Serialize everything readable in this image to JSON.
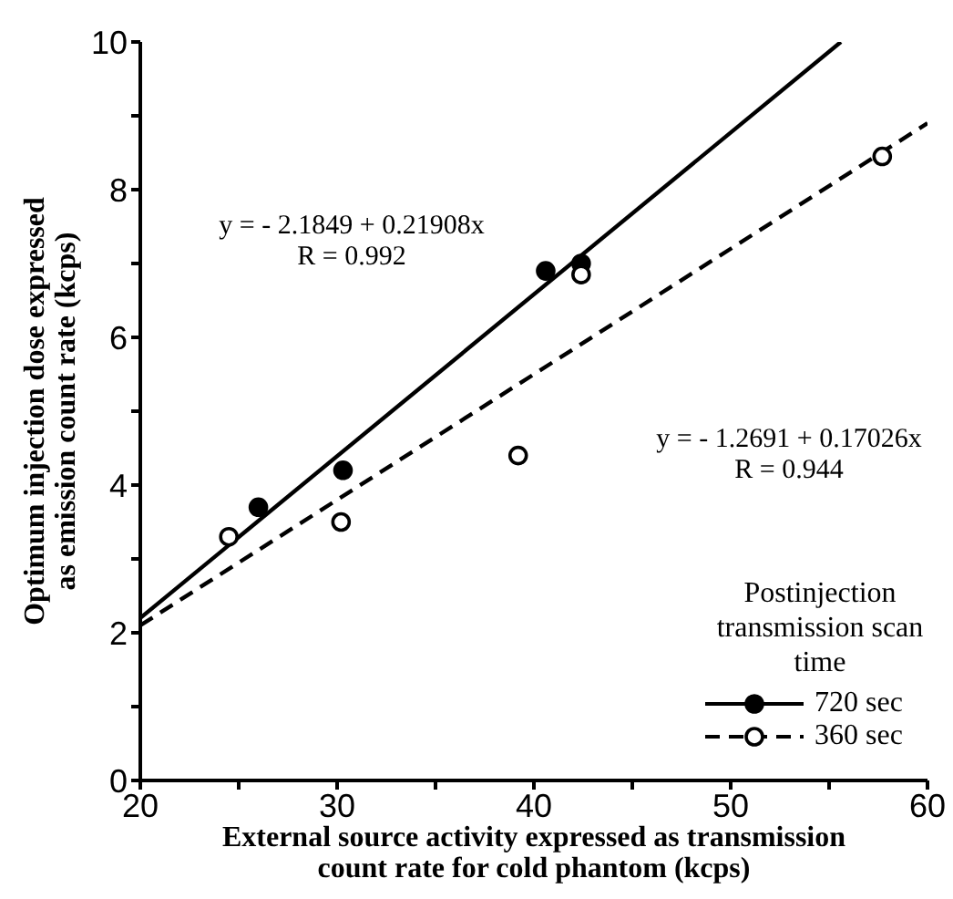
{
  "chart_data": {
    "type": "scatter",
    "xlabel": "External source activity expressed as transmission count rate for cold phantom (kcps)",
    "ylabel": "Optimum injection dose expressed as emission count rate (kcps)",
    "legend_title": "Postinjection transmission scan time",
    "legend": "bottom right",
    "marker": "circle",
    "xlim": [
      20,
      60
    ],
    "xticks": [
      20,
      {
        "value": 25,
        "label": null
      },
      30,
      {
        "value": 35,
        "label": null
      },
      40,
      {
        "value": 45,
        "label": null
      },
      50,
      {
        "value": 55,
        "label": null
      },
      60
    ],
    "ylim": [
      0,
      10
    ],
    "yticks": [
      0,
      {
        "value": 1,
        "label": null
      },
      2,
      {
        "value": 3,
        "label": null
      },
      4,
      {
        "value": 5,
        "label": null
      },
      6,
      {
        "value": 7,
        "label": null
      },
      8,
      {
        "value": 9,
        "label": null
      },
      10
    ],
    "series": [
      {
        "name": "720 sec",
        "color": "#000000",
        "line_style": "solid",
        "x": [
          26,
          30.3,
          40.6,
          42.4
        ],
        "values": [
          3.7,
          4.2,
          6.9,
          7.0
        ]
      },
      {
        "name": "360 sec",
        "color": "#000000",
        "line_style": "dashed",
        "x": [
          24.5,
          30.2,
          39.2,
          42.4,
          57.7
        ],
        "values": [
          3.3,
          3.5,
          4.4,
          6.85,
          8.45
        ]
      },
      {
        "type": "line",
        "color": "#000000",
        "line_style": "solid",
        "marker": "none",
        "x": [
          20,
          55.6
        ],
        "values": [
          2.2,
          10
        ]
      },
      {
        "type": "line",
        "color": "#000000",
        "line_style": "dashed",
        "marker": "none",
        "x": [
          20,
          60
        ],
        "values": [
          2.1,
          8.9
        ]
      }
    ],
    "annotations": [
      "y = - 2.1849 + 0.21908x\nR = 0.992",
      "y = - 1.2691 + 0.17026x\nR = 0.944"
    ]
  }
}
